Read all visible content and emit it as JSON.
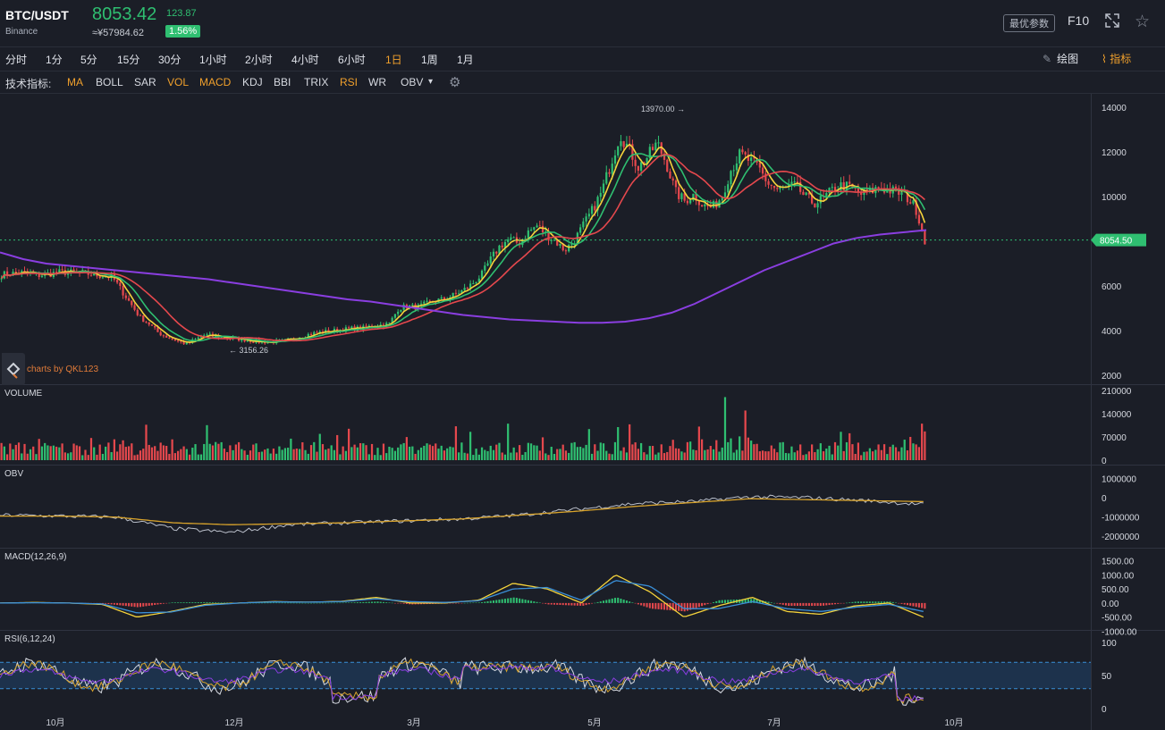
{
  "header": {
    "pair": "BTC/USDT",
    "exchange": "Binance",
    "price": "8053.42",
    "change": "123.87",
    "cny_price": "≈¥57984.62",
    "change_pct": "1.56%",
    "param_button": "最优参数",
    "f10": "F10",
    "fullscreen_icon": "expand-icon",
    "favorite_icon": "star-icon"
  },
  "timeframes": [
    "分时",
    "1分",
    "5分",
    "15分",
    "30分",
    "1小时",
    "2小时",
    "4小时",
    "6小时",
    "1日",
    "1周",
    "1月"
  ],
  "active_timeframe": "1日",
  "toolbar_right": {
    "draw_label": "绘图",
    "indicator_label": "指标"
  },
  "tech": {
    "label": "技术指标:",
    "items": [
      "MA",
      "BOLL",
      "SAR",
      "VOL",
      "MACD",
      "KDJ",
      "BBI",
      "TRIX",
      "RSI",
      "WR",
      "OBV"
    ],
    "active": [
      "MA",
      "VOL",
      "MACD",
      "RSI"
    ],
    "settings_icon": "gear-icon"
  },
  "watermark": "charts by QKL123",
  "colors": {
    "up": "#2fbf71",
    "down": "#e5484d",
    "accent": "#f0a02c",
    "ma200": "#8a3ee0",
    "bg": "#1b1e27"
  },
  "chart_data": [
    {
      "type": "candlestick",
      "title": "",
      "x_ticks": [
        "10月",
        "12月",
        "3月",
        "5月",
        "7月",
        "10月"
      ],
      "y_ticks": [
        2000,
        4000,
        6000,
        8000,
        10000,
        12000,
        14000
      ],
      "ylim": [
        2000,
        14000
      ],
      "current_price_label": "8054.50",
      "annotations": [
        {
          "text": "13970.00",
          "value": 13970
        },
        {
          "text": "3156.26",
          "value": 3156.26
        }
      ],
      "close": [
        6500,
        6550,
        6600,
        6560,
        6480,
        6520,
        6600,
        6620,
        6580,
        6560,
        6500,
        6450,
        6400,
        5800,
        5200,
        4600,
        4300,
        3900,
        3700,
        3550,
        3400,
        3600,
        3800,
        3750,
        3700,
        3650,
        3600,
        3550,
        3500,
        3480,
        3520,
        3560,
        3700,
        3800,
        3900,
        3950,
        4000,
        4050,
        4100,
        4100,
        4200,
        4250,
        4300,
        5000,
        5100,
        5050,
        5200,
        5350,
        5400,
        5600,
        5800,
        6100,
        6500,
        7200,
        7800,
        8100,
        7900,
        8400,
        8700,
        8300,
        8000,
        7600,
        8000,
        8700,
        9400,
        10200,
        11500,
        12800,
        12100,
        11300,
        11800,
        12400,
        11500,
        10200,
        9800,
        10100,
        9600,
        9500,
        10000,
        11200,
        11900,
        11600,
        11300,
        10600,
        10300,
        10400,
        10500,
        10000,
        9700,
        9900,
        10300,
        10500,
        10400,
        10100,
        10200,
        10400,
        10300,
        10200,
        10000,
        9500,
        8053
      ],
      "ma200": [
        7500,
        7200,
        7000,
        6900,
        6800,
        6700,
        6600,
        6500,
        6400,
        6300,
        6150,
        6000,
        5850,
        5700,
        5550,
        5400,
        5300,
        5150,
        5000,
        4850,
        4700,
        4600,
        4500,
        4450,
        4400,
        4350,
        4350,
        4400,
        4550,
        4800,
        5200,
        5700,
        6200,
        6700,
        7100,
        7500,
        7900,
        8150,
        8300,
        8400,
        8500
      ]
    },
    {
      "type": "bar",
      "title": "VOLUME",
      "y_ticks": [
        0,
        70000,
        140000,
        210000
      ],
      "ylim": [
        0,
        210000
      ]
    },
    {
      "type": "line",
      "title": "OBV",
      "y_ticks": [
        1000000,
        0,
        -1000000,
        -2000000
      ],
      "ylim": [
        -2500000,
        1300000
      ]
    },
    {
      "type": "line",
      "title": "MACD(12,26,9)",
      "y_ticks": [
        1500,
        1000,
        500,
        0,
        -500,
        -1000
      ],
      "y_tick_labels": [
        "1500.00",
        "1000.00",
        "500.00",
        "0.00",
        "-500.00",
        "-1000.00"
      ],
      "ylim": [
        -1050,
        1550
      ]
    },
    {
      "type": "line",
      "title": "RSI(6,12,24)",
      "y_ticks": [
        0,
        50,
        100
      ],
      "ylim": [
        0,
        100
      ],
      "band": [
        30,
        70
      ]
    }
  ]
}
